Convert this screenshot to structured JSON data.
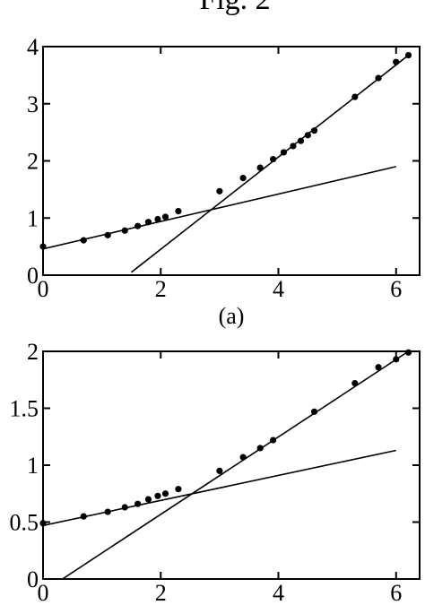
{
  "figure": {
    "title": "Fig. 2"
  },
  "chart_data": [
    {
      "type": "scatter",
      "title": "",
      "panel_label": "(a)",
      "xlabel": "",
      "ylabel": "",
      "xlim": [
        0,
        6.4
      ],
      "ylim": [
        0,
        4
      ],
      "x_ticks": [
        0,
        2,
        4,
        6
      ],
      "y_ticks": [
        0,
        1,
        2,
        3,
        4
      ],
      "grid": false,
      "series": [
        {
          "points": [
            [
              0,
              0.5
            ],
            [
              0.69,
              0.61
            ],
            [
              1.1,
              0.7
            ],
            [
              1.39,
              0.78
            ],
            [
              1.61,
              0.86
            ],
            [
              1.79,
              0.93
            ],
            [
              1.95,
              0.98
            ],
            [
              2.08,
              1.02
            ],
            [
              2.3,
              1.12
            ],
            [
              3.0,
              1.47
            ],
            [
              3.4,
              1.7
            ],
            [
              3.69,
              1.88
            ],
            [
              3.91,
              2.03
            ],
            [
              4.09,
              2.15
            ],
            [
              4.25,
              2.26
            ],
            [
              4.38,
              2.35
            ],
            [
              4.5,
              2.45
            ],
            [
              4.61,
              2.53
            ],
            [
              5.3,
              3.12
            ],
            [
              5.7,
              3.45
            ],
            [
              6.0,
              3.73
            ],
            [
              6.21,
              3.85
            ]
          ]
        }
      ],
      "fit_lines": [
        {
          "x": [
            0,
            6
          ],
          "y": [
            0.46,
            1.9
          ]
        },
        {
          "x": [
            1.5,
            6.21
          ],
          "y": [
            0.05,
            3.85
          ]
        }
      ]
    },
    {
      "type": "scatter",
      "title": "",
      "panel_label": "",
      "xlabel": "",
      "ylabel": "",
      "xlim": [
        0,
        6.4
      ],
      "ylim": [
        0,
        2
      ],
      "x_ticks": [
        0,
        2,
        4,
        6
      ],
      "y_ticks": [
        0,
        0.5,
        1,
        1.5,
        2
      ],
      "y_tick_labels": [
        "0",
        "0.5",
        "1",
        "1.5",
        "2"
      ],
      "grid": false,
      "series": [
        {
          "points": [
            [
              0,
              0.49
            ],
            [
              0.69,
              0.55
            ],
            [
              1.1,
              0.59
            ],
            [
              1.39,
              0.63
            ],
            [
              1.61,
              0.66
            ],
            [
              1.79,
              0.7
            ],
            [
              1.95,
              0.73
            ],
            [
              2.08,
              0.75
            ],
            [
              2.3,
              0.79
            ],
            [
              3.0,
              0.95
            ],
            [
              3.4,
              1.07
            ],
            [
              3.69,
              1.15
            ],
            [
              3.91,
              1.22
            ],
            [
              4.61,
              1.47
            ],
            [
              5.3,
              1.72
            ],
            [
              5.7,
              1.86
            ],
            [
              6.0,
              1.93
            ],
            [
              6.21,
              1.99
            ]
          ]
        }
      ],
      "fit_lines": [
        {
          "x": [
            0,
            6
          ],
          "y": [
            0.47,
            1.13
          ]
        },
        {
          "x": [
            0.33,
            6.21
          ],
          "y": [
            0.0,
            2.0
          ]
        }
      ]
    }
  ]
}
